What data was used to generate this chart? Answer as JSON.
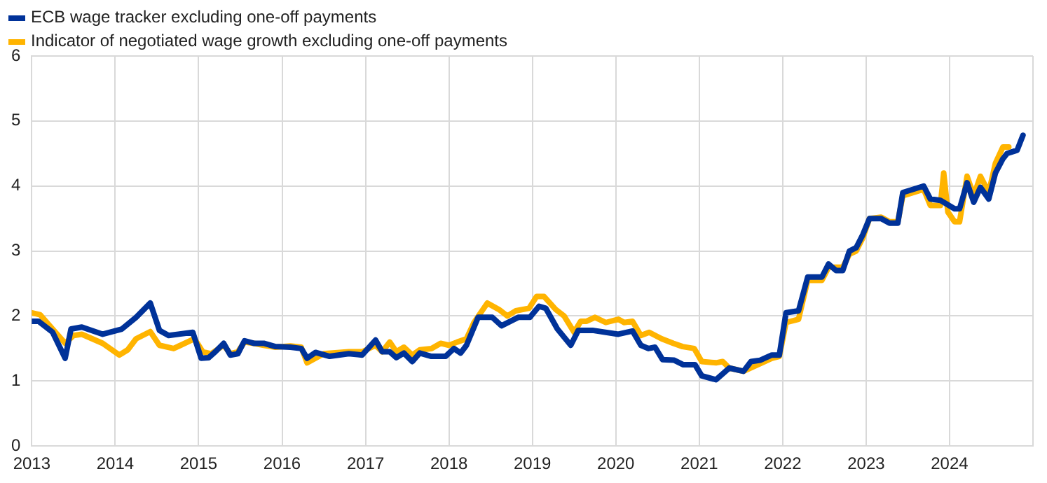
{
  "chart_data": {
    "type": "line",
    "xlim": [
      2013,
      2025
    ],
    "xticks": [
      2013,
      2014,
      2015,
      2016,
      2017,
      2018,
      2019,
      2020,
      2021,
      2022,
      2023,
      2024,
      {
        "value": 2025,
        "label": null
      }
    ],
    "ylim": [
      0,
      6
    ],
    "yticks": [
      0,
      1,
      2,
      3,
      4,
      5,
      6
    ],
    "grid": true,
    "legend": "top left",
    "marker": "none",
    "line_style": "solid",
    "series": [
      {
        "name": "ECB wage tracker excluding one-off payments",
        "color": "#003299",
        "x": [
          2013.0,
          2013.08,
          2013.25,
          2013.4,
          2013.47,
          2013.6,
          2013.85,
          2014.08,
          2014.25,
          2014.42,
          2014.53,
          2014.64,
          2014.93,
          2015.03,
          2015.12,
          2015.2,
          2015.3,
          2015.38,
          2015.47,
          2015.55,
          2015.66,
          2015.78,
          2015.92,
          2016.1,
          2016.23,
          2016.3,
          2016.4,
          2016.57,
          2016.8,
          2016.96,
          2017.12,
          2017.2,
          2017.29,
          2017.37,
          2017.46,
          2017.56,
          2017.65,
          2017.79,
          2017.96,
          2018.06,
          2018.14,
          2018.21,
          2018.35,
          2018.52,
          2018.63,
          2018.83,
          2018.97,
          2019.08,
          2019.16,
          2019.3,
          2019.46,
          2019.55,
          2019.72,
          2020.03,
          2020.2,
          2020.3,
          2020.39,
          2020.47,
          2020.56,
          2020.7,
          2020.81,
          2020.95,
          2021.03,
          2021.2,
          2021.36,
          2021.53,
          2021.62,
          2021.73,
          2021.87,
          2021.96,
          2022.04,
          2022.19,
          2022.3,
          2022.47,
          2022.55,
          2022.64,
          2022.72,
          2022.8,
          2022.88,
          2022.96,
          2023.04,
          2023.18,
          2023.28,
          2023.38,
          2023.44,
          2023.69,
          2023.77,
          2023.89,
          2024.06,
          2024.12,
          2024.21,
          2024.29,
          2024.37,
          2024.47,
          2024.55,
          2024.64,
          2024.69,
          2024.81,
          2024.88
        ],
        "values": [
          1.92,
          1.92,
          1.75,
          1.35,
          1.8,
          1.83,
          1.72,
          1.8,
          1.98,
          2.2,
          1.78,
          1.7,
          1.75,
          1.35,
          1.36,
          1.45,
          1.58,
          1.4,
          1.42,
          1.62,
          1.58,
          1.58,
          1.53,
          1.52,
          1.5,
          1.35,
          1.44,
          1.38,
          1.42,
          1.4,
          1.63,
          1.45,
          1.45,
          1.36,
          1.43,
          1.3,
          1.43,
          1.38,
          1.38,
          1.5,
          1.43,
          1.55,
          1.98,
          1.98,
          1.85,
          1.98,
          1.98,
          2.15,
          2.12,
          1.8,
          1.55,
          1.78,
          1.78,
          1.72,
          1.77,
          1.55,
          1.5,
          1.52,
          1.33,
          1.32,
          1.25,
          1.25,
          1.08,
          1.02,
          1.2,
          1.15,
          1.3,
          1.32,
          1.4,
          1.4,
          2.05,
          2.08,
          2.6,
          2.6,
          2.8,
          2.7,
          2.7,
          3.0,
          3.05,
          3.25,
          3.5,
          3.5,
          3.43,
          3.43,
          3.9,
          4.0,
          3.8,
          3.78,
          3.65,
          3.65,
          4.05,
          3.75,
          3.98,
          3.8,
          4.2,
          4.42,
          4.5,
          4.55,
          4.78
        ]
      },
      {
        "name": "Indicator of negotiated wage growth excluding one-off payments",
        "color": "#ffb400",
        "x": [
          2013.0,
          2013.1,
          2013.25,
          2013.4,
          2013.5,
          2013.6,
          2013.85,
          2014.05,
          2014.15,
          2014.25,
          2014.42,
          2014.53,
          2014.7,
          2014.95,
          2015.05,
          2015.15,
          2015.3,
          2015.38,
          2015.47,
          2015.55,
          2015.66,
          2015.78,
          2015.92,
          2016.1,
          2016.23,
          2016.3,
          2016.5,
          2016.8,
          2016.96,
          2017.12,
          2017.2,
          2017.29,
          2017.37,
          2017.46,
          2017.56,
          2017.65,
          2017.79,
          2017.9,
          2018.0,
          2018.1,
          2018.21,
          2018.3,
          2018.46,
          2018.6,
          2018.7,
          2018.8,
          2018.96,
          2019.05,
          2019.14,
          2019.28,
          2019.38,
          2019.5,
          2019.58,
          2019.65,
          2019.75,
          2019.88,
          2020.03,
          2020.1,
          2020.2,
          2020.3,
          2020.4,
          2020.55,
          2020.69,
          2020.8,
          2020.94,
          2021.03,
          2021.2,
          2021.28,
          2021.36,
          2021.53,
          2021.7,
          2021.87,
          2021.96,
          2022.04,
          2022.19,
          2022.3,
          2022.47,
          2022.55,
          2022.64,
          2022.72,
          2022.8,
          2022.88,
          2022.96,
          2023.04,
          2023.18,
          2023.28,
          2023.38,
          2023.44,
          2023.69,
          2023.77,
          2023.89,
          2023.93,
          2023.98,
          2024.06,
          2024.12,
          2024.21,
          2024.29,
          2024.37,
          2024.47,
          2024.55,
          2024.64,
          2024.71
        ],
        "values": [
          2.05,
          2.02,
          1.8,
          1.58,
          1.7,
          1.72,
          1.58,
          1.4,
          1.48,
          1.65,
          1.76,
          1.55,
          1.5,
          1.65,
          1.45,
          1.42,
          1.55,
          1.42,
          1.45,
          1.6,
          1.58,
          1.55,
          1.52,
          1.54,
          1.52,
          1.28,
          1.42,
          1.45,
          1.45,
          1.55,
          1.45,
          1.6,
          1.45,
          1.52,
          1.4,
          1.48,
          1.5,
          1.58,
          1.55,
          1.6,
          1.65,
          1.9,
          2.2,
          2.1,
          2.0,
          2.08,
          2.12,
          2.3,
          2.3,
          2.1,
          2.0,
          1.75,
          1.92,
          1.92,
          1.98,
          1.9,
          1.95,
          1.9,
          1.92,
          1.7,
          1.75,
          1.65,
          1.58,
          1.53,
          1.5,
          1.3,
          1.28,
          1.3,
          1.2,
          1.15,
          1.25,
          1.35,
          1.38,
          1.9,
          1.95,
          2.55,
          2.55,
          2.75,
          2.75,
          2.75,
          2.95,
          3.0,
          3.2,
          3.5,
          3.52,
          3.45,
          3.45,
          3.85,
          3.95,
          3.7,
          3.7,
          4.2,
          3.6,
          3.45,
          3.45,
          4.15,
          3.85,
          4.15,
          3.9,
          4.35,
          4.6,
          4.6
        ]
      }
    ]
  }
}
